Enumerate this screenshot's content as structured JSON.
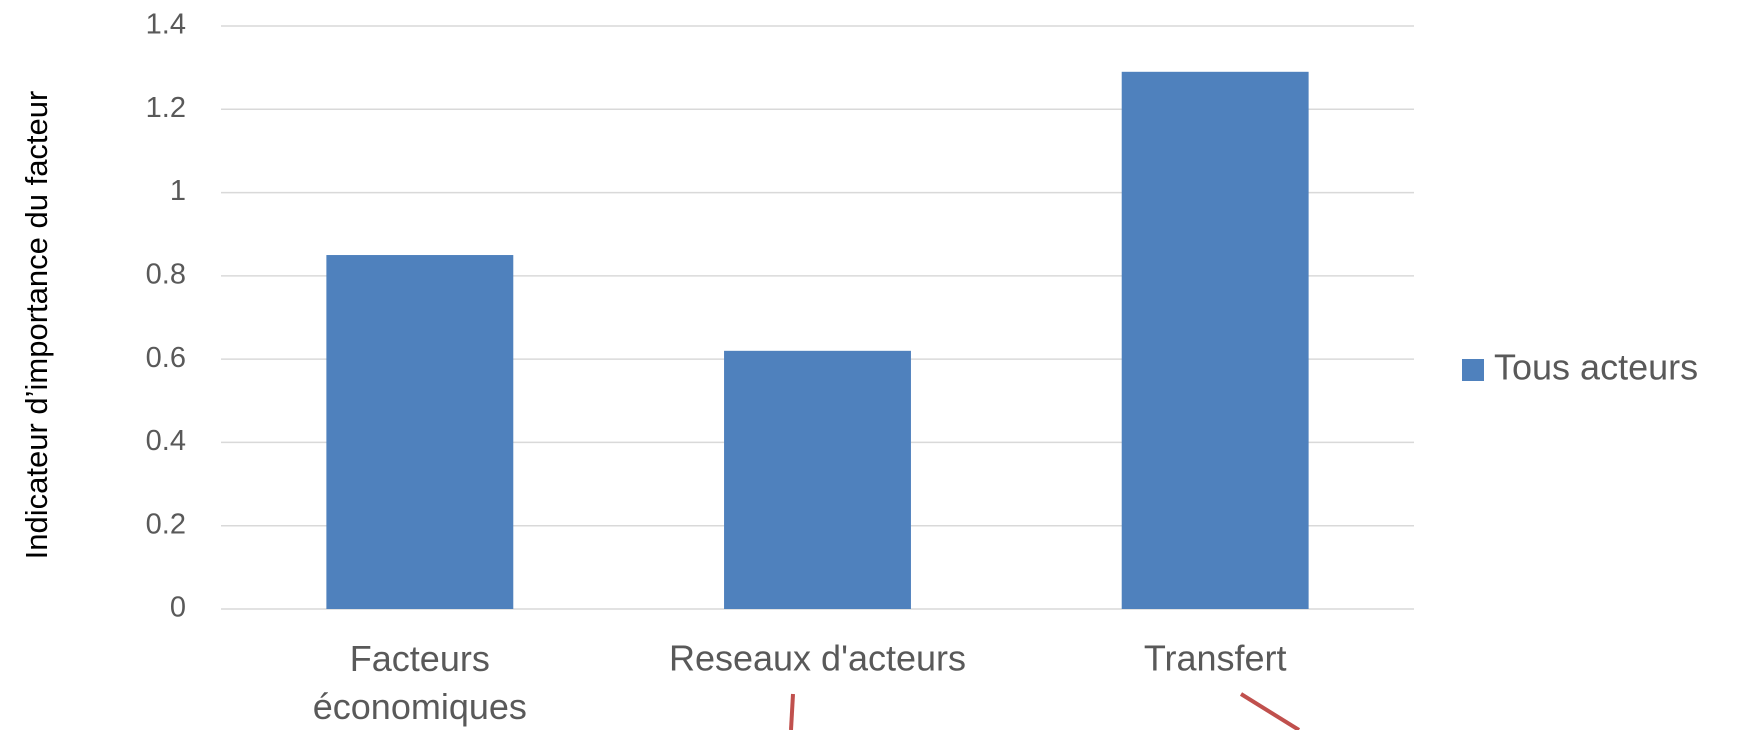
{
  "chart_data": {
    "type": "bar",
    "y_label": "Indicateur d’importance du facteur",
    "categories": [
      "Facteurs économiques",
      "Reseaux d'acteurs",
      "Transfert"
    ],
    "series": [
      {
        "name": "Tous acteurs",
        "color": "#4f81bd",
        "values": [
          0.85,
          0.62,
          1.29
        ]
      }
    ],
    "ylim": [
      0,
      1.4
    ],
    "yticks": [
      0,
      0.2,
      0.4,
      0.6,
      0.8,
      1,
      1.2,
      1.4
    ],
    "grid": true,
    "legend": "right"
  }
}
